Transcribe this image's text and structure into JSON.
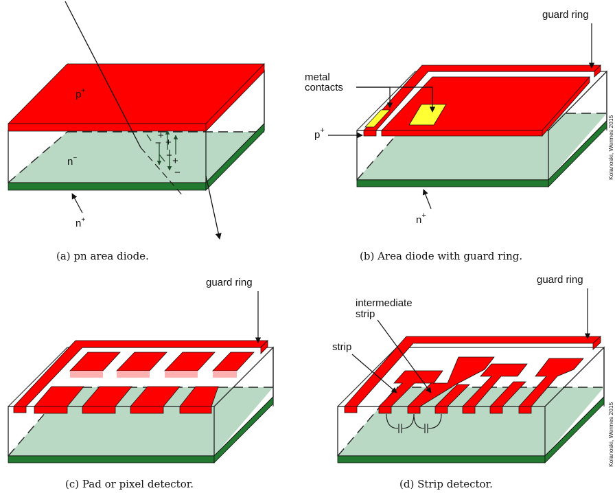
{
  "panel_a": {
    "caption": "(a) pn area diode.",
    "label_p": "p",
    "label_p_sup": "+",
    "label_n_minus": "n",
    "label_n_minus_sup": "−",
    "label_n_plus": "n",
    "label_n_plus_sup": "+",
    "charge_plus": "+",
    "charge_minus": "−"
  },
  "panel_b": {
    "caption": "(b) Area diode with guard ring.",
    "guard_ring": "guard ring",
    "metal_contacts_1": "metal",
    "metal_contacts_2": "contacts",
    "label_p": "p",
    "label_p_sup": "+",
    "label_n_plus": "n",
    "label_n_plus_sup": "+",
    "credit": "Kolanoski, Wermes 2015"
  },
  "panel_c": {
    "caption": "(c) Pad or pixel detector.",
    "guard_ring": "guard ring"
  },
  "panel_d": {
    "caption": "(d) Strip detector.",
    "guard_ring": "guard ring",
    "intermediate_1": "intermediate",
    "intermediate_2": "strip",
    "strip": "strip",
    "credit": "Kolanoski, Wermes 2015"
  },
  "colors": {
    "p_plus": "#ff0000",
    "n_bulk": "#b9d9c4",
    "n_plus_back": "#217a2f",
    "metal": "#ffff33",
    "ring_gap": "#ffffff"
  }
}
